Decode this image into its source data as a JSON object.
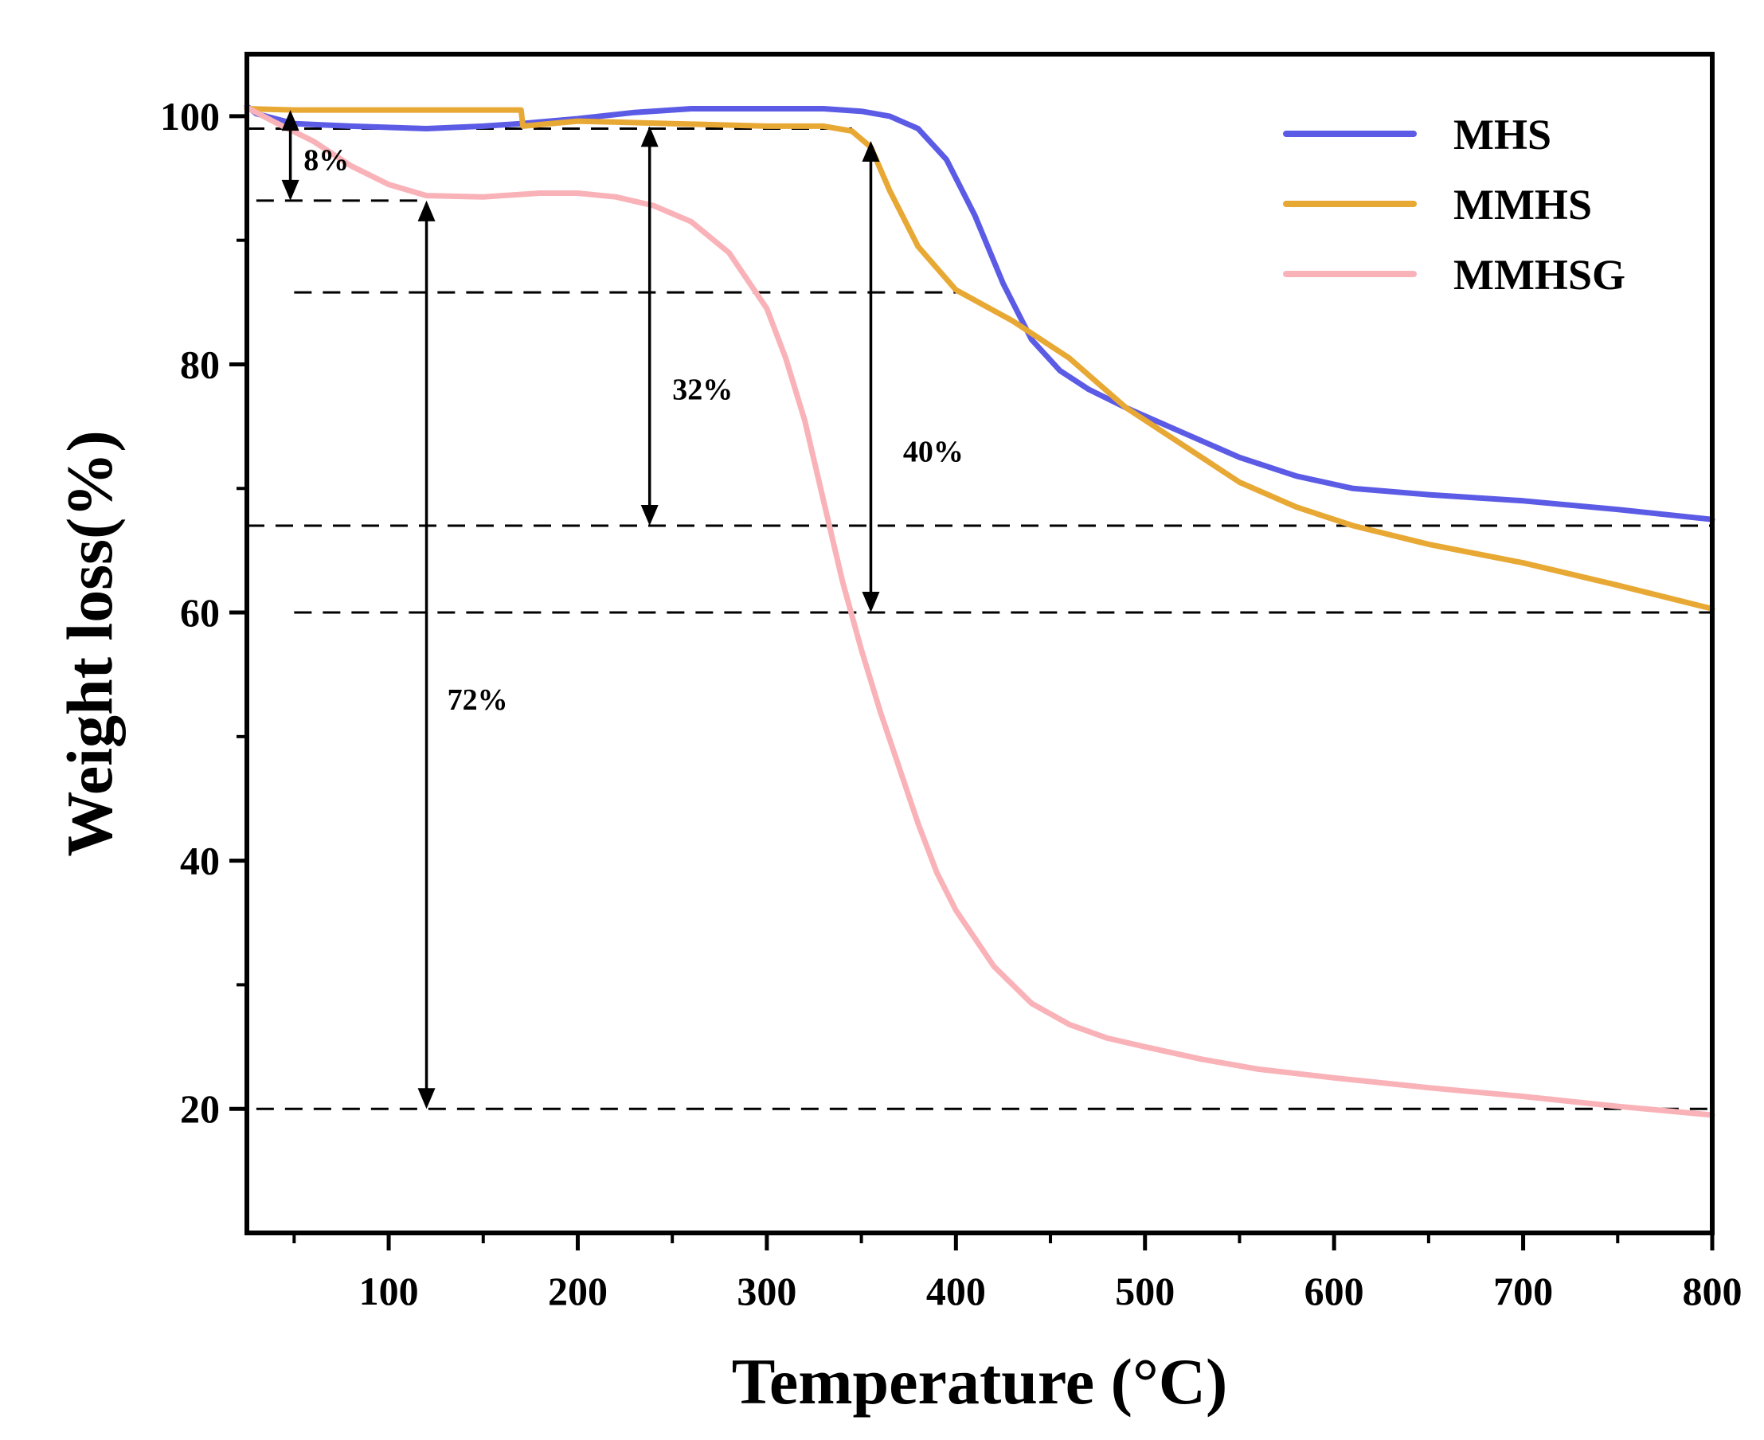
{
  "chart_data": {
    "type": "line",
    "title": "",
    "xlabel": "Temperature (°C)",
    "ylabel": "Weight loss(%)",
    "xlim": [
      25,
      800
    ],
    "ylim": [
      10,
      105
    ],
    "xticks": [
      100,
      200,
      300,
      400,
      500,
      600,
      700,
      800
    ],
    "xticks_minor": [
      50,
      150,
      250,
      350,
      450,
      550,
      650,
      750
    ],
    "yticks": [
      20,
      40,
      60,
      80,
      100
    ],
    "yticks_minor": [
      30,
      50,
      70,
      90
    ],
    "grid": false,
    "legend_position": "top-right",
    "series": [
      {
        "name": "MHS",
        "color": "#5b5be6",
        "x": [
          25,
          30,
          50,
          80,
          120,
          150,
          170,
          200,
          230,
          260,
          300,
          330,
          350,
          365,
          380,
          395,
          410,
          425,
          440,
          455,
          470,
          490,
          520,
          550,
          580,
          610,
          650,
          700,
          750,
          800
        ],
        "y": [
          100.8,
          100.2,
          99.4,
          99.2,
          99.0,
          99.2,
          99.4,
          99.8,
          100.3,
          100.6,
          100.6,
          100.6,
          100.4,
          100.0,
          99.0,
          96.5,
          92.0,
          86.5,
          82.0,
          79.5,
          78.0,
          76.5,
          74.5,
          72.5,
          71.0,
          70.0,
          69.5,
          69.0,
          68.3,
          67.5
        ]
      },
      {
        "name": "MMHS",
        "color": "#e8a834",
        "x": [
          25,
          50,
          100,
          150,
          170,
          171,
          200,
          250,
          300,
          330,
          345,
          355,
          365,
          380,
          400,
          430,
          460,
          490,
          520,
          550,
          580,
          610,
          650,
          700,
          750,
          800
        ],
        "y": [
          100.6,
          100.5,
          100.5,
          100.5,
          100.5,
          99.2,
          99.6,
          99.4,
          99.2,
          99.2,
          98.8,
          97.5,
          94.0,
          89.5,
          86.0,
          83.5,
          80.5,
          76.5,
          73.5,
          70.5,
          68.5,
          67.0,
          65.5,
          64.0,
          62.2,
          60.3
        ]
      },
      {
        "name": "MMHSG",
        "color": "#f9b3b8",
        "x": [
          25,
          40,
          60,
          80,
          100,
          120,
          150,
          180,
          200,
          220,
          240,
          260,
          280,
          300,
          310,
          320,
          330,
          340,
          350,
          360,
          370,
          380,
          390,
          400,
          420,
          440,
          460,
          480,
          500,
          530,
          560,
          600,
          650,
          700,
          750,
          800
        ],
        "y": [
          100.7,
          99.5,
          98.0,
          96.0,
          94.5,
          93.6,
          93.5,
          93.8,
          93.8,
          93.5,
          92.8,
          91.5,
          89.0,
          84.5,
          80.5,
          75.5,
          69.0,
          62.5,
          57.0,
          52.0,
          47.5,
          43.0,
          39.0,
          36.0,
          31.5,
          28.5,
          26.8,
          25.7,
          25.0,
          24.0,
          23.2,
          22.5,
          21.7,
          21.0,
          20.2,
          19.5
        ]
      }
    ],
    "reference_lines": [
      {
        "y": 99.0,
        "x_start": 25,
        "x_end": 345
      },
      {
        "y": 93.2,
        "x_start": 30,
        "x_end": 120
      },
      {
        "y": 85.8,
        "x_start": 50,
        "x_end": 400
      },
      {
        "y": 67.0,
        "x_start": 25,
        "x_end": 800
      },
      {
        "y": 60.0,
        "x_start": 50,
        "x_end": 800
      },
      {
        "y": 20.0,
        "x_start": 30,
        "x_end": 800
      }
    ],
    "annotations": [
      {
        "text": "8%",
        "arrow_x": 48,
        "arrow_from": 100.5,
        "arrow_to": 93.2,
        "label_x": 55,
        "label_y": 96.5
      },
      {
        "text": "32%",
        "arrow_x": 238,
        "arrow_from": 99.2,
        "arrow_to": 67.0,
        "label_x": 250,
        "label_y": 78.0
      },
      {
        "text": "40%",
        "arrow_x": 355,
        "arrow_from": 98.0,
        "arrow_to": 60.0,
        "label_x": 372,
        "label_y": 73.0
      },
      {
        "text": "72%",
        "arrow_x": 120,
        "arrow_from": 93.2,
        "arrow_to": 20.0,
        "label_x": 131,
        "label_y": 53.0
      }
    ]
  }
}
